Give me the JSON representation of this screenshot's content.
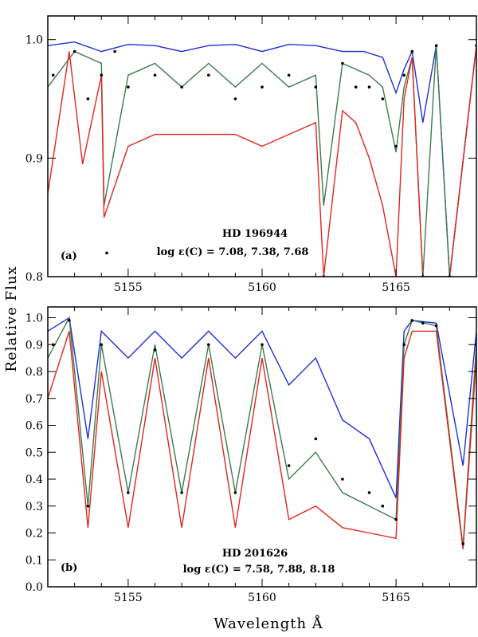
{
  "figure": {
    "ylabel": "Relative Flux",
    "xlabel": "Wavelength Å"
  },
  "colors": {
    "blue": "#1f2fd6",
    "green": "#3c7a4f",
    "red": "#e0261f",
    "dots": "#000000"
  },
  "chart_data": [
    {
      "type": "line",
      "panel_label": "(a)",
      "star": "HD 196944",
      "abundance_label": "log ε(C) = 7.08, 7.38, 7.68",
      "xlim": [
        5152,
        5168
      ],
      "ylim": [
        0.8,
        1.02
      ],
      "xticks": [
        5155,
        5160,
        5165
      ],
      "xtick_labels": [
        "5155",
        "5160",
        "5165"
      ],
      "yticks": [
        0.8,
        0.9,
        1.0
      ],
      "ytick_labels": [
        "0.8",
        "0.9",
        "1.0"
      ],
      "series": [
        {
          "name": "7.08",
          "color": "blue",
          "style": "line",
          "x": [
            5152,
            5153,
            5154,
            5155,
            5156,
            5157,
            5158,
            5159,
            5160,
            5161,
            5162,
            5163,
            5163.8,
            5164.5,
            5165,
            5165.3,
            5165.6,
            5166,
            5166.5,
            5167,
            5168
          ],
          "y": [
            0.995,
            0.998,
            0.99,
            0.996,
            0.995,
            0.99,
            0.995,
            0.996,
            0.99,
            0.996,
            0.995,
            0.99,
            0.99,
            0.985,
            0.955,
            0.975,
            0.99,
            0.93,
            0.995,
            0.8,
            0.995
          ]
        },
        {
          "name": "7.38",
          "color": "green",
          "style": "line",
          "x": [
            5152,
            5153,
            5154,
            5154.1,
            5155,
            5156,
            5157,
            5158,
            5159,
            5160,
            5161,
            5162,
            5162.3,
            5163,
            5164,
            5164.5,
            5165,
            5165.3,
            5165.6,
            5166,
            5166.5,
            5167,
            5168
          ],
          "y": [
            0.96,
            0.99,
            0.98,
            0.86,
            0.97,
            0.98,
            0.96,
            0.98,
            0.96,
            0.98,
            0.96,
            0.97,
            0.86,
            0.98,
            0.97,
            0.96,
            0.905,
            0.96,
            0.985,
            0.8,
            0.995,
            0.8,
            0.995
          ]
        },
        {
          "name": "7.68",
          "color": "red",
          "style": "line",
          "x": [
            5152,
            5152.8,
            5153.3,
            5154,
            5154.1,
            5155,
            5156,
            5157,
            5158,
            5159,
            5160,
            5161,
            5162,
            5162.3,
            5163,
            5163.5,
            5164,
            5164.5,
            5165,
            5165.3,
            5165.6,
            5166,
            5167,
            5168
          ],
          "y": [
            0.87,
            0.99,
            0.895,
            0.97,
            0.85,
            0.91,
            0.92,
            0.92,
            0.92,
            0.92,
            0.91,
            0.92,
            0.93,
            0.8,
            0.94,
            0.93,
            0.9,
            0.86,
            0.8,
            0.95,
            0.985,
            0.8,
            0.8,
            0.995
          ]
        },
        {
          "name": "observed",
          "color": "dots",
          "style": "dots",
          "x": [
            5152.2,
            5153,
            5153.5,
            5154,
            5154.2,
            5154.5,
            5155,
            5156,
            5157,
            5158,
            5159,
            5160,
            5161,
            5162,
            5162.3,
            5163,
            5163.5,
            5164,
            5164.5,
            5165,
            5165.3,
            5165.6,
            5166,
            5166.5,
            5167,
            5168
          ],
          "y": [
            0.97,
            0.99,
            0.95,
            0.97,
            0.82,
            0.99,
            0.96,
            0.97,
            0.96,
            0.97,
            0.95,
            0.96,
            0.97,
            0.96,
            0.8,
            0.98,
            0.96,
            0.96,
            0.95,
            0.91,
            0.97,
            0.99,
            0.8,
            0.995,
            0.8,
            0.995
          ]
        }
      ]
    },
    {
      "type": "line",
      "panel_label": "(b)",
      "star": "HD 201626",
      "abundance_label": "log ε(C) = 7.58, 7.88, 8.18",
      "xlim": [
        5152,
        5168
      ],
      "ylim": [
        0.0,
        1.04
      ],
      "xticks": [
        5155,
        5160,
        5165
      ],
      "xtick_labels": [
        "5155",
        "5160",
        "5165"
      ],
      "yticks": [
        0.0,
        0.1,
        0.2,
        0.3,
        0.4,
        0.5,
        0.6,
        0.7,
        0.8,
        0.9,
        1.0
      ],
      "ytick_labels": [
        "0.0",
        "0.1",
        "0.2",
        "0.3",
        "0.4",
        "0.5",
        "0.6",
        "0.7",
        "0.8",
        "0.9",
        "1.0"
      ],
      "series": [
        {
          "name": "7.58",
          "color": "blue",
          "style": "line",
          "x": [
            5152,
            5152.8,
            5153.5,
            5154,
            5155,
            5156,
            5157,
            5158,
            5159,
            5160,
            5161,
            5162,
            5163,
            5164,
            5165,
            5165.3,
            5165.6,
            5166.5,
            5167.5,
            5168
          ],
          "y": [
            0.95,
            1.0,
            0.55,
            0.95,
            0.85,
            0.95,
            0.85,
            0.95,
            0.85,
            0.95,
            0.75,
            0.85,
            0.62,
            0.55,
            0.33,
            0.95,
            0.99,
            0.98,
            0.45,
            0.95
          ]
        },
        {
          "name": "7.88",
          "color": "green",
          "style": "line",
          "x": [
            5152,
            5152.8,
            5153.5,
            5154,
            5155,
            5156,
            5157,
            5158,
            5159,
            5160,
            5161,
            5162,
            5163,
            5164,
            5165,
            5165.3,
            5165.6,
            5166.5,
            5167.5,
            5168
          ],
          "y": [
            0.85,
            1.0,
            0.3,
            0.9,
            0.35,
            0.9,
            0.35,
            0.9,
            0.35,
            0.9,
            0.4,
            0.5,
            0.35,
            0.3,
            0.25,
            0.9,
            0.99,
            0.97,
            0.15,
            0.9
          ]
        },
        {
          "name": "8.18",
          "color": "red",
          "style": "line",
          "x": [
            5152,
            5152.8,
            5153.5,
            5154,
            5155,
            5156,
            5157,
            5158,
            5159,
            5160,
            5161,
            5162,
            5163,
            5164,
            5165,
            5165.3,
            5165.6,
            5166.5,
            5167.5,
            5168
          ],
          "y": [
            0.7,
            0.95,
            0.22,
            0.8,
            0.22,
            0.85,
            0.22,
            0.85,
            0.22,
            0.85,
            0.25,
            0.3,
            0.22,
            0.2,
            0.18,
            0.85,
            0.95,
            0.95,
            0.14,
            0.85
          ]
        },
        {
          "name": "observed",
          "color": "dots",
          "style": "dots",
          "x": [
            5152.2,
            5152.8,
            5153.5,
            5154,
            5155,
            5156,
            5157,
            5158,
            5159,
            5160,
            5161,
            5162,
            5163,
            5164,
            5164.5,
            5165,
            5165.3,
            5165.6,
            5166,
            5166.5,
            5167.5,
            5168
          ],
          "y": [
            0.9,
            0.99,
            0.3,
            0.9,
            0.35,
            0.88,
            0.35,
            0.9,
            0.35,
            0.9,
            0.45,
            0.55,
            0.4,
            0.35,
            0.3,
            0.25,
            0.9,
            0.99,
            0.98,
            0.97,
            0.16,
            0.9
          ]
        }
      ]
    }
  ]
}
